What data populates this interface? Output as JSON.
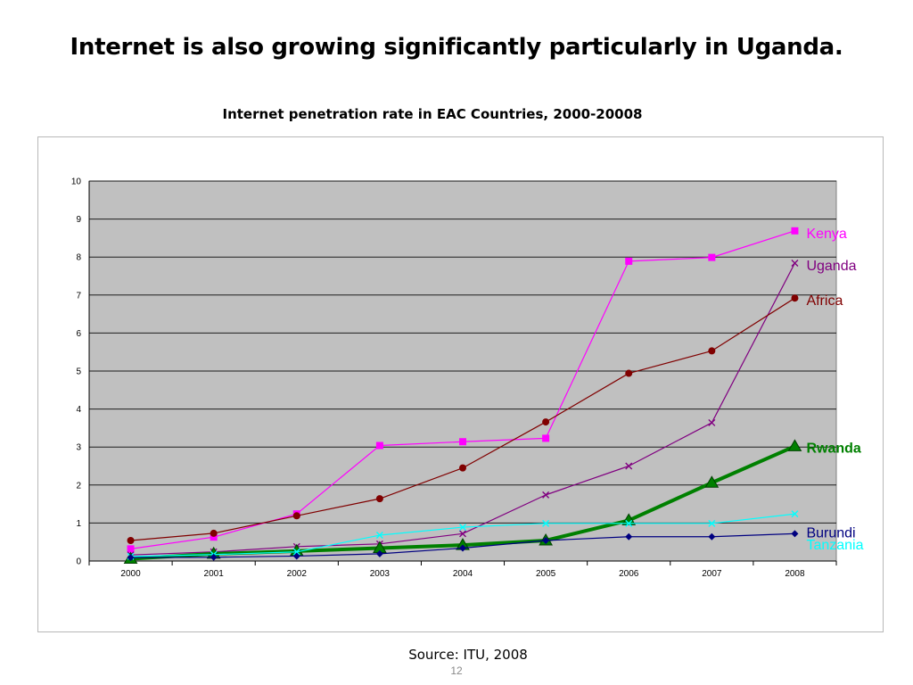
{
  "slide": {
    "title": "Internet is also growing significantly particularly in Uganda.",
    "source": "Source: ITU, 2008",
    "page_number": "12"
  },
  "chart_data": {
    "type": "line",
    "title": "Internet penetration rate in EAC Countries, 2000-20008",
    "xlabel": "",
    "ylabel": "",
    "categories": [
      "2000",
      "2001",
      "2002",
      "2003",
      "2004",
      "2005",
      "2006",
      "2007",
      "2008"
    ],
    "ylim": [
      0,
      10
    ],
    "yticks": [
      "0",
      "1",
      "2",
      "3",
      "4",
      "5",
      "6",
      "7",
      "8",
      "9",
      "10"
    ],
    "grid": true,
    "plot_background": "#c0c0c0",
    "series": [
      {
        "name": "Kenya",
        "color": "#ff00ff",
        "marker": "square",
        "width": 1.2,
        "values": [
          0.32,
          0.63,
          1.24,
          3.04,
          3.14,
          3.23,
          7.89,
          7.99,
          8.69
        ]
      },
      {
        "name": "Uganda",
        "color": "#800080",
        "marker": "x",
        "width": 1.2,
        "values": [
          0.16,
          0.24,
          0.38,
          0.45,
          0.72,
          1.74,
          2.5,
          3.64,
          7.84
        ]
      },
      {
        "name": "Africa",
        "color": "#800000",
        "marker": "circle",
        "width": 1.2,
        "values": [
          0.54,
          0.73,
          1.19,
          1.64,
          2.45,
          3.66,
          4.94,
          5.53,
          6.92
        ]
      },
      {
        "name": "Rwanda",
        "color": "#008000",
        "marker": "triangle",
        "width": 4,
        "bold": true,
        "values": [
          0.06,
          0.19,
          0.26,
          0.34,
          0.42,
          0.54,
          1.07,
          2.06,
          3.02
        ]
      },
      {
        "name": "Tanzania",
        "color": "#00ffff",
        "marker": "x",
        "width": 1.2,
        "values": [
          0.12,
          0.17,
          0.24,
          0.68,
          0.89,
          0.99,
          0.99,
          0.99,
          1.24
        ]
      },
      {
        "name": "Burundi",
        "color": "#000080",
        "marker": "diamond",
        "width": 1.2,
        "values": [
          0.09,
          0.1,
          0.13,
          0.19,
          0.34,
          0.54,
          0.64,
          0.64,
          0.72
        ]
      }
    ]
  }
}
